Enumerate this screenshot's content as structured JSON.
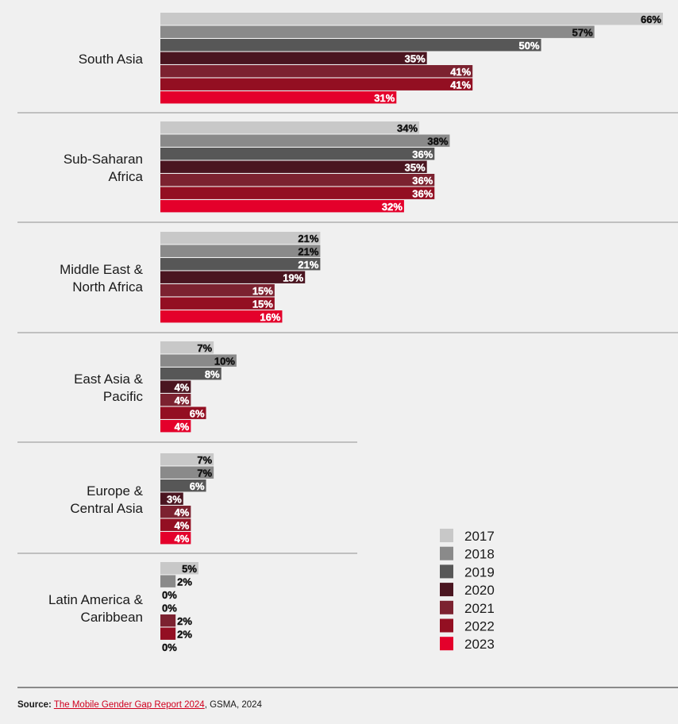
{
  "chart_data": {
    "type": "bar",
    "orientation": "horizontal",
    "categories": [
      "South Asia",
      "Sub-Saharan Africa",
      "Middle East & North Africa",
      "East Asia & Pacific",
      "Europe & Central Asia",
      "Latin America & Caribbean"
    ],
    "category_lines": [
      [
        "South Asia"
      ],
      [
        "Sub-Saharan",
        "Africa"
      ],
      [
        "Middle East &",
        "North Africa"
      ],
      [
        "East Asia &",
        "Pacific"
      ],
      [
        "Europe &",
        "Central Asia"
      ],
      [
        "Latin America &",
        "Caribbean"
      ]
    ],
    "series": [
      {
        "name": "2017",
        "color": "#c8c8c8",
        "values": [
          66,
          34,
          21,
          7,
          7,
          5
        ]
      },
      {
        "name": "2018",
        "color": "#8a8a8a",
        "values": [
          57,
          38,
          21,
          10,
          7,
          2
        ]
      },
      {
        "name": "2019",
        "color": "#575757",
        "values": [
          50,
          36,
          21,
          8,
          6,
          0
        ]
      },
      {
        "name": "2020",
        "color": "#4a1520",
        "values": [
          35,
          35,
          19,
          4,
          3,
          0
        ]
      },
      {
        "name": "2021",
        "color": "#7c2230",
        "values": [
          41,
          36,
          15,
          4,
          4,
          2
        ]
      },
      {
        "name": "2022",
        "color": "#930f22",
        "values": [
          41,
          36,
          15,
          6,
          4,
          2
        ]
      },
      {
        "name": "2023",
        "color": "#e4002b",
        "values": [
          31,
          32,
          16,
          4,
          4,
          0
        ]
      }
    ],
    "value_suffix": "%",
    "xlim": [
      0,
      66
    ],
    "legend_position": "bottom-right",
    "grid": false
  },
  "source": {
    "label": "Source:",
    "link_text": "The Mobile Gender Gap Report 2024",
    "rest": ", GSMA, 2024"
  }
}
